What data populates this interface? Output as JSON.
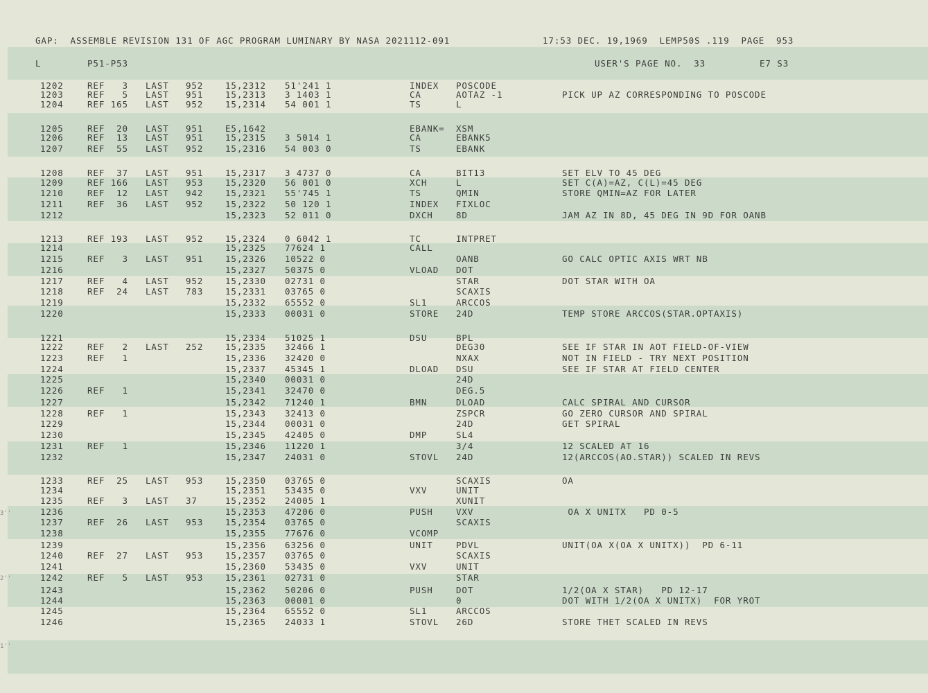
{
  "header": {
    "left": "GAP:  ASSEMBLE REVISION 131 OF AGC PROGRAM LUMINARY BY NASA 2021112-091",
    "right": "17:53 DEC. 19,1969  LEMP50S .119  PAGE  953"
  },
  "subheader": {
    "col1": "L",
    "col2": "P51-P53",
    "users_page": "USER'S PAGE NO.  33",
    "code": "E7 S3"
  },
  "rows": [
    {
      "n": "1202",
      "ref": "REF   3",
      "last": "LAST",
      "lnum": "952",
      "addr": "15,2312",
      "oct": "51'241 1",
      "op": "INDEX",
      "opnd": "POSCODE",
      "cmt": ""
    },
    {
      "n": "1203",
      "ref": "REF   5",
      "last": "LAST",
      "lnum": "951",
      "addr": "15,2313",
      "oct": "3 1403 1",
      "op": "CA",
      "opnd": "AOTAZ -1",
      "cmt": "PICK UP AZ CORRESPONDING TO POSCODE"
    },
    {
      "n": "1204",
      "ref": "REF 165",
      "last": "LAST",
      "lnum": "952",
      "addr": "15,2314",
      "oct": "54 001 1",
      "op": "TS",
      "opnd": "L",
      "cmt": ""
    },
    {
      "n": "1205",
      "ref": "REF  20",
      "last": "LAST",
      "lnum": "951",
      "addr": "E5,1642",
      "oct": "",
      "op": "EBANK=",
      "opnd": "XSM",
      "cmt": ""
    },
    {
      "n": "1206",
      "ref": "REF  13",
      "last": "LAST",
      "lnum": "951",
      "addr": "15,2315",
      "oct": "3 5014 1",
      "op": "CA",
      "opnd": "EBANK5",
      "cmt": ""
    },
    {
      "n": "1207",
      "ref": "REF  55",
      "last": "LAST",
      "lnum": "952",
      "addr": "15,2316",
      "oct": "54 003 0",
      "op": "TS",
      "opnd": "EBANK",
      "cmt": ""
    },
    {
      "n": "1208",
      "ref": "REF  37",
      "last": "LAST",
      "lnum": "951",
      "addr": "15,2317",
      "oct": "3 4737 0",
      "op": "CA",
      "opnd": "BIT13",
      "cmt": "SET ELV TO 45 DEG"
    },
    {
      "n": "1209",
      "ref": "REF 166",
      "last": "LAST",
      "lnum": "953",
      "addr": "15,2320",
      "oct": "56 001 0",
      "op": "XCH",
      "opnd": "L",
      "cmt": "SET C(A)=AZ, C(L)=45 DEG"
    },
    {
      "n": "1210",
      "ref": "REF  12",
      "last": "LAST",
      "lnum": "942",
      "addr": "15,2321",
      "oct": "55'745 1",
      "op": "TS",
      "opnd": "QMIN",
      "cmt": "STORE QMIN=AZ FOR LATER"
    },
    {
      "n": "1211",
      "ref": "REF  36",
      "last": "LAST",
      "lnum": "952",
      "addr": "15,2322",
      "oct": "50 120 1",
      "op": "INDEX",
      "opnd": "FIXLOC",
      "cmt": ""
    },
    {
      "n": "1212",
      "ref": "",
      "last": "",
      "lnum": "",
      "addr": "15,2323",
      "oct": "52 011 0",
      "op": "DXCH",
      "opnd": "8D",
      "cmt": "JAM AZ IN 8D, 45 DEG IN 9D FOR OANB"
    },
    {
      "n": "1213",
      "ref": "REF 193",
      "last": "LAST",
      "lnum": "952",
      "addr": "15,2324",
      "oct": "0 6042 1",
      "op": "TC",
      "opnd": "INTPRET",
      "cmt": ""
    },
    {
      "n": "1214",
      "ref": "",
      "last": "",
      "lnum": "",
      "addr": "15,2325",
      "oct": "77624 1",
      "op": "CALL",
      "opnd": "",
      "cmt": ""
    },
    {
      "n": "1215",
      "ref": "REF   3",
      "last": "LAST",
      "lnum": "951",
      "addr": "15,2326",
      "oct": "10522 0",
      "op": "",
      "opnd": "OANB",
      "cmt": "GO CALC OPTIC AXIS WRT NB"
    },
    {
      "n": "1216",
      "ref": "",
      "last": "",
      "lnum": "",
      "addr": "15,2327",
      "oct": "50375 0",
      "op": "VLOAD",
      "opnd": "DOT",
      "cmt": ""
    },
    {
      "n": "1217",
      "ref": "REF   4",
      "last": "LAST",
      "lnum": "952",
      "addr": "15,2330",
      "oct": "02731 0",
      "op": "",
      "opnd": "STAR",
      "cmt": "DOT STAR WITH OA"
    },
    {
      "n": "1218",
      "ref": "REF  24",
      "last": "LAST",
      "lnum": "783",
      "addr": "15,2331",
      "oct": "03765 0",
      "op": "",
      "opnd": "SCAXIS",
      "cmt": ""
    },
    {
      "n": "1219",
      "ref": "",
      "last": "",
      "lnum": "",
      "addr": "15,2332",
      "oct": "65552 0",
      "op": "SL1",
      "opnd": "ARCCOS",
      "cmt": ""
    },
    {
      "n": "1220",
      "ref": "",
      "last": "",
      "lnum": "",
      "addr": "15,2333",
      "oct": "00031 0",
      "op": "STORE",
      "opnd": "24D",
      "cmt": "TEMP STORE ARCCOS(STAR.OPTAXIS)"
    },
    {
      "n": "1221",
      "ref": "",
      "last": "",
      "lnum": "",
      "addr": "15,2334",
      "oct": "51025 1",
      "op": "DSU",
      "opnd": "BPL",
      "cmt": ""
    },
    {
      "n": "1222",
      "ref": "REF   2",
      "last": "LAST",
      "lnum": "252",
      "addr": "15,2335",
      "oct": "32466 1",
      "op": "",
      "opnd": "DEG30",
      "cmt": "SEE IF STAR IN AOT FIELD-OF-VIEW"
    },
    {
      "n": "1223",
      "ref": "REF   1",
      "last": "",
      "lnum": "",
      "addr": "15,2336",
      "oct": "32420 0",
      "op": "",
      "opnd": "NXAX",
      "cmt": "NOT IN FIELD - TRY NEXT POSITION"
    },
    {
      "n": "1224",
      "ref": "",
      "last": "",
      "lnum": "",
      "addr": "15,2337",
      "oct": "45345 1",
      "op": "DLOAD",
      "opnd": "DSU",
      "cmt": "SEE IF STAR AT FIELD CENTER"
    },
    {
      "n": "1225",
      "ref": "",
      "last": "",
      "lnum": "",
      "addr": "15,2340",
      "oct": "00031 0",
      "op": "",
      "opnd": "24D",
      "cmt": ""
    },
    {
      "n": "1226",
      "ref": "REF   1",
      "last": "",
      "lnum": "",
      "addr": "15,2341",
      "oct": "32470 0",
      "op": "",
      "opnd": "DEG.5",
      "cmt": ""
    },
    {
      "n": "1227",
      "ref": "",
      "last": "",
      "lnum": "",
      "addr": "15,2342",
      "oct": "71240 1",
      "op": "BMN",
      "opnd": "DLOAD",
      "cmt": "CALC SPIRAL AND CURSOR"
    },
    {
      "n": "1228",
      "ref": "REF   1",
      "last": "",
      "lnum": "",
      "addr": "15,2343",
      "oct": "32413 0",
      "op": "",
      "opnd": "ZSPCR",
      "cmt": "GO ZERO CURSOR AND SPIRAL"
    },
    {
      "n": "1229",
      "ref": "",
      "last": "",
      "lnum": "",
      "addr": "15,2344",
      "oct": "00031 0",
      "op": "",
      "opnd": "24D",
      "cmt": "GET SPIRAL"
    },
    {
      "n": "1230",
      "ref": "",
      "last": "",
      "lnum": "",
      "addr": "15,2345",
      "oct": "42405 0",
      "op": "DMP",
      "opnd": "SL4",
      "cmt": ""
    },
    {
      "n": "1231",
      "ref": "REF   1",
      "last": "",
      "lnum": "",
      "addr": "15,2346",
      "oct": "11220 1",
      "op": "",
      "opnd": "3/4",
      "cmt": "12 SCALED AT 16"
    },
    {
      "n": "1232",
      "ref": "",
      "last": "",
      "lnum": "",
      "addr": "15,2347",
      "oct": "24031 0",
      "op": "STOVL",
      "opnd": "24D",
      "cmt": "12(ARCCOS(AO.STAR)) SCALED IN REVS"
    },
    {
      "n": "1233",
      "ref": "REF  25",
      "last": "LAST",
      "lnum": "953",
      "addr": "15,2350",
      "oct": "03765 0",
      "op": "",
      "opnd": "SCAXIS",
      "cmt": "OA"
    },
    {
      "n": "1234",
      "ref": "",
      "last": "",
      "lnum": "",
      "addr": "15,2351",
      "oct": "53435 0",
      "op": "VXV",
      "opnd": "UNIT",
      "cmt": ""
    },
    {
      "n": "1235",
      "ref": "REF   3",
      "last": "LAST",
      "lnum": "37",
      "addr": "15,2352",
      "oct": "24005 1",
      "op": "",
      "opnd": "XUNIT",
      "cmt": ""
    },
    {
      "n": "1236",
      "ref": "",
      "last": "",
      "lnum": "",
      "addr": "15,2353",
      "oct": "47206 0",
      "op": "PUSH",
      "opnd": "VXV",
      "cmt": " OA X UNITX   PD 0-5"
    },
    {
      "n": "1237",
      "ref": "REF  26",
      "last": "LAST",
      "lnum": "953",
      "addr": "15,2354",
      "oct": "03765 0",
      "op": "",
      "opnd": "SCAXIS",
      "cmt": ""
    },
    {
      "n": "1238",
      "ref": "",
      "last": "",
      "lnum": "",
      "addr": "15,2355",
      "oct": "77676 0",
      "op": "VCOMP",
      "opnd": "",
      "cmt": ""
    },
    {
      "n": "1239",
      "ref": "",
      "last": "",
      "lnum": "",
      "addr": "15,2356",
      "oct": "63256 0",
      "op": "UNIT",
      "opnd": "PDVL",
      "cmt": "UNIT(OA X(OA X UNITX))  PD 6-11"
    },
    {
      "n": "1240",
      "ref": "REF  27",
      "last": "LAST",
      "lnum": "953",
      "addr": "15,2357",
      "oct": "03765 0",
      "op": "",
      "opnd": "SCAXIS",
      "cmt": ""
    },
    {
      "n": "1241",
      "ref": "",
      "last": "",
      "lnum": "",
      "addr": "15,2360",
      "oct": "53435 0",
      "op": "VXV",
      "opnd": "UNIT",
      "cmt": ""
    },
    {
      "n": "1242",
      "ref": "REF   5",
      "last": "LAST",
      "lnum": "953",
      "addr": "15,2361",
      "oct": "02731 0",
      "op": "",
      "opnd": "STAR",
      "cmt": ""
    },
    {
      "n": "1243",
      "ref": "",
      "last": "",
      "lnum": "",
      "addr": "15,2362",
      "oct": "50206 0",
      "op": "PUSH",
      "opnd": "DOT",
      "cmt": "1/2(OA X STAR)   PD 12-17"
    },
    {
      "n": "1244",
      "ref": "",
      "last": "",
      "lnum": "",
      "addr": "15,2363",
      "oct": "00001 0",
      "op": "",
      "opnd": "0",
      "cmt": "DOT WITH 1/2(OA X UNITX)  FOR YROT"
    },
    {
      "n": "1245",
      "ref": "",
      "last": "",
      "lnum": "",
      "addr": "15,2364",
      "oct": "65552 0",
      "op": "SL1",
      "opnd": "ARCCOS",
      "cmt": ""
    },
    {
      "n": "1246",
      "ref": "",
      "last": "",
      "lnum": "",
      "addr": "15,2365",
      "oct": "24033 1",
      "op": "STOVL",
      "opnd": "26D",
      "cmt": "STORE THET SCALED IN REVS"
    }
  ]
}
